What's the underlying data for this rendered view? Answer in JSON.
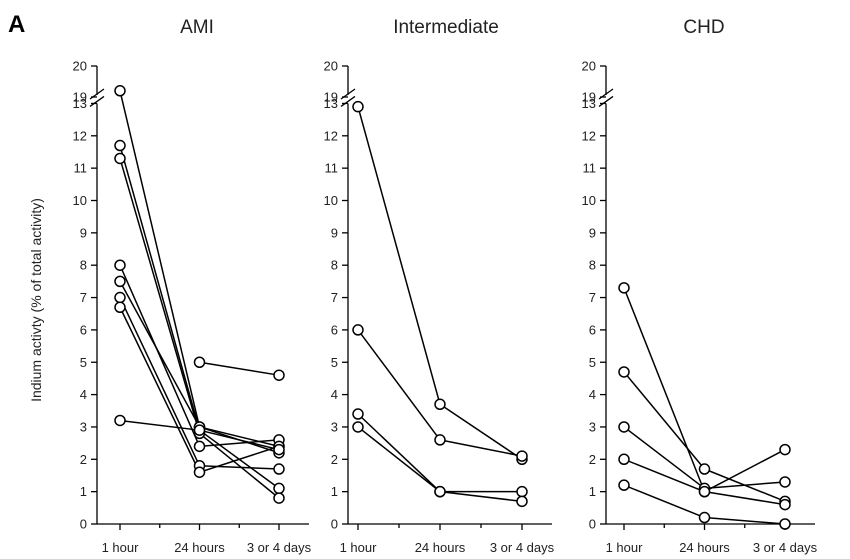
{
  "figure": {
    "panel_letter": "A"
  },
  "chart_data": [
    {
      "type": "line",
      "title": "AMI",
      "xlabel": "",
      "ylabel": "Indium activty (% of total activity)",
      "categories": [
        "1 hour",
        "24 hours",
        "3 or 4 days"
      ],
      "y_ticks_lower": [
        0,
        1,
        2,
        3,
        4,
        5,
        6,
        7,
        8,
        9,
        10,
        11,
        12,
        13
      ],
      "y_ticks_upper": [
        19,
        20
      ],
      "ylim": [
        0,
        20
      ],
      "axis_break": [
        13,
        19
      ],
      "series": [
        {
          "values": [
            19.2,
            3.0,
            2.4
          ]
        },
        {
          "values": [
            11.7,
            2.9,
            1.1
          ]
        },
        {
          "values": [
            11.3,
            2.8,
            0.8
          ]
        },
        {
          "values": [
            8.0,
            2.4,
            2.6
          ]
        },
        {
          "values": [
            7.5,
            3.0,
            2.2
          ]
        },
        {
          "values": [
            7.0,
            1.8,
            1.7
          ]
        },
        {
          "values": [
            6.7,
            1.6,
            2.4
          ]
        },
        {
          "values": [
            3.2,
            2.9,
            2.3
          ]
        },
        {
          "values": [
            null,
            5.0,
            4.6
          ]
        }
      ]
    },
    {
      "type": "line",
      "title": "Intermediate",
      "xlabel": "",
      "ylabel": "",
      "categories": [
        "1 hour",
        "24 hours",
        "3 or 4 days"
      ],
      "y_ticks_lower": [
        0,
        1,
        2,
        3,
        4,
        5,
        6,
        7,
        8,
        9,
        10,
        11,
        12,
        13
      ],
      "y_ticks_upper": [
        19,
        20
      ],
      "ylim": [
        0,
        20
      ],
      "axis_break": [
        13,
        19
      ],
      "series": [
        {
          "values": [
            12.9,
            3.7,
            2.0
          ]
        },
        {
          "values": [
            6.0,
            2.6,
            2.1
          ]
        },
        {
          "values": [
            3.4,
            1.0,
            1.0
          ]
        },
        {
          "values": [
            3.0,
            1.0,
            0.7
          ]
        }
      ]
    },
    {
      "type": "line",
      "title": "CHD",
      "xlabel": "",
      "ylabel": "",
      "categories": [
        "1 hour",
        "24 hours",
        "3 or 4 days"
      ],
      "y_ticks_lower": [
        0,
        1,
        2,
        3,
        4,
        5,
        6,
        7,
        8,
        9,
        10,
        11,
        12,
        13
      ],
      "y_ticks_upper": [
        19,
        20
      ],
      "ylim": [
        0,
        20
      ],
      "axis_break": [
        13,
        19
      ],
      "series": [
        {
          "values": [
            7.3,
            1.0,
            2.3
          ]
        },
        {
          "values": [
            4.7,
            1.7,
            0.7
          ]
        },
        {
          "values": [
            3.0,
            1.1,
            1.3
          ]
        },
        {
          "values": [
            2.0,
            1.0,
            0.6
          ]
        },
        {
          "values": [
            1.2,
            0.2,
            0.0
          ]
        }
      ]
    }
  ]
}
